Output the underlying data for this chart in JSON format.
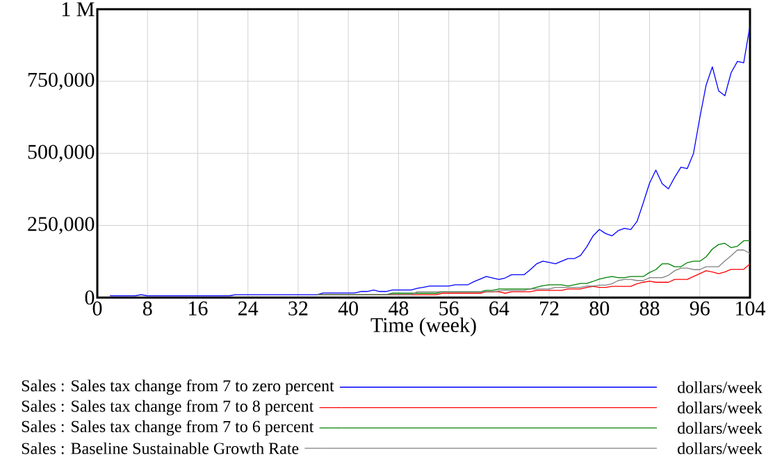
{
  "chart_data": {
    "type": "line",
    "xlabel": "Time (week)",
    "xlim": [
      0,
      104
    ],
    "xticks": [
      0,
      8,
      16,
      24,
      32,
      40,
      48,
      56,
      64,
      72,
      80,
      88,
      96,
      104
    ],
    "ylim": [
      0,
      1000000
    ],
    "yticks": [
      {
        "value": 0,
        "label": "0"
      },
      {
        "value": 250000,
        "label": "250,000"
      },
      {
        "value": 500000,
        "label": "500,000"
      },
      {
        "value": 750000,
        "label": "750,000"
      },
      {
        "value": 1000000,
        "label": "1 M"
      }
    ],
    "grid": true,
    "legend": "bottom",
    "annotations": [
      "dollars/week",
      "dollars/week",
      "dollars/week",
      "dollars/week"
    ],
    "series": [
      {
        "name": "Sales : Sales tax change from 7 to zero percent",
        "color": "#0000ff",
        "x": [
          2,
          6,
          7,
          8,
          21,
          22,
          35,
          36,
          41,
          42,
          43,
          44,
          45,
          46,
          47,
          50,
          51,
          52,
          53,
          56,
          57,
          59,
          60,
          61,
          62,
          63,
          64,
          65,
          66,
          68,
          69,
          70,
          71,
          72,
          73,
          74,
          75,
          76,
          77,
          78,
          79,
          80,
          81,
          82,
          83,
          84,
          85,
          86,
          87,
          88,
          89,
          90,
          91,
          92,
          93,
          94,
          95,
          96,
          97,
          98,
          99,
          100,
          101,
          102,
          103,
          104
        ],
        "values": [
          6000,
          6000,
          10000,
          6000,
          6000,
          10000,
          10000,
          16000,
          16000,
          21000,
          21000,
          26000,
          21000,
          21000,
          26000,
          26000,
          32000,
          36000,
          40000,
          40000,
          44000,
          44000,
          55000,
          64000,
          73000,
          68000,
          63000,
          68000,
          79000,
          79000,
          97000,
          117000,
          126000,
          122000,
          117000,
          126000,
          135000,
          135000,
          146000,
          176000,
          214000,
          236000,
          222000,
          214000,
          232000,
          240000,
          236000,
          264000,
          329000,
          397000,
          442000,
          395000,
          377000,
          417000,
          452000,
          447000,
          500000,
          623000,
          736000,
          800000,
          717000,
          700000,
          780000,
          819000,
          814000,
          943000
        ]
      },
      {
        "name": "Sales : Sales tax change from 7 to 8 percent",
        "color": "#ff0000",
        "x": [
          35,
          54,
          55,
          61,
          62,
          64,
          65,
          66,
          69,
          70,
          74,
          75,
          77,
          78,
          79,
          80,
          81,
          82,
          85,
          86,
          87,
          88,
          89,
          91,
          92,
          94,
          95,
          96,
          97,
          98,
          99,
          100,
          101,
          103,
          104
        ],
        "values": [
          10000,
          10000,
          15000,
          15000,
          20000,
          20000,
          15000,
          20000,
          20000,
          25000,
          25000,
          30000,
          30000,
          35000,
          39000,
          35000,
          35000,
          39000,
          39000,
          48000,
          53000,
          57000,
          53000,
          53000,
          63000,
          63000,
          73000,
          83000,
          93000,
          89000,
          83000,
          89000,
          98000,
          98000,
          117000
        ]
      },
      {
        "name": "Sales : Sales tax change from 7 to 6 percent",
        "color": "#008000",
        "x": [
          35,
          46,
          47,
          54,
          55,
          61,
          62,
          63,
          64,
          69,
          70,
          71,
          72,
          74,
          75,
          76,
          77,
          78,
          79,
          80,
          81,
          82,
          83,
          84,
          85,
          87,
          88,
          89,
          90,
          91,
          92,
          93,
          94,
          95,
          96,
          97,
          98,
          99,
          100,
          101,
          102,
          103,
          104
        ],
        "values": [
          10000,
          10000,
          15000,
          15000,
          20000,
          20000,
          25000,
          25000,
          30000,
          30000,
          36000,
          41000,
          44000,
          44000,
          40000,
          44000,
          49000,
          49000,
          56000,
          64000,
          69000,
          73000,
          69000,
          69000,
          73000,
          73000,
          87000,
          97000,
          117000,
          117000,
          107000,
          107000,
          121000,
          126000,
          126000,
          141000,
          168000,
          184000,
          188000,
          173000,
          178000,
          197000,
          197000
        ]
      },
      {
        "name": "Sales : Baseline Sustainable Growth Rate",
        "color": "#808080",
        "x": [
          35,
          50,
          51,
          63,
          64,
          65,
          68,
          69,
          72,
          73,
          77,
          78,
          79,
          80,
          81,
          82,
          83,
          84,
          85,
          86,
          87,
          88,
          90,
          91,
          92,
          93,
          94,
          95,
          96,
          97,
          99,
          100,
          101,
          102,
          103,
          104
        ],
        "values": [
          10000,
          10000,
          20000,
          20000,
          23000,
          25000,
          25000,
          30000,
          30000,
          35000,
          35000,
          40000,
          40000,
          43000,
          43000,
          48000,
          59000,
          63000,
          63000,
          59000,
          59000,
          69000,
          69000,
          77000,
          93000,
          102000,
          102000,
          97000,
          97000,
          107000,
          107000,
          127000,
          145000,
          165000,
          165000,
          153000
        ]
      }
    ]
  }
}
